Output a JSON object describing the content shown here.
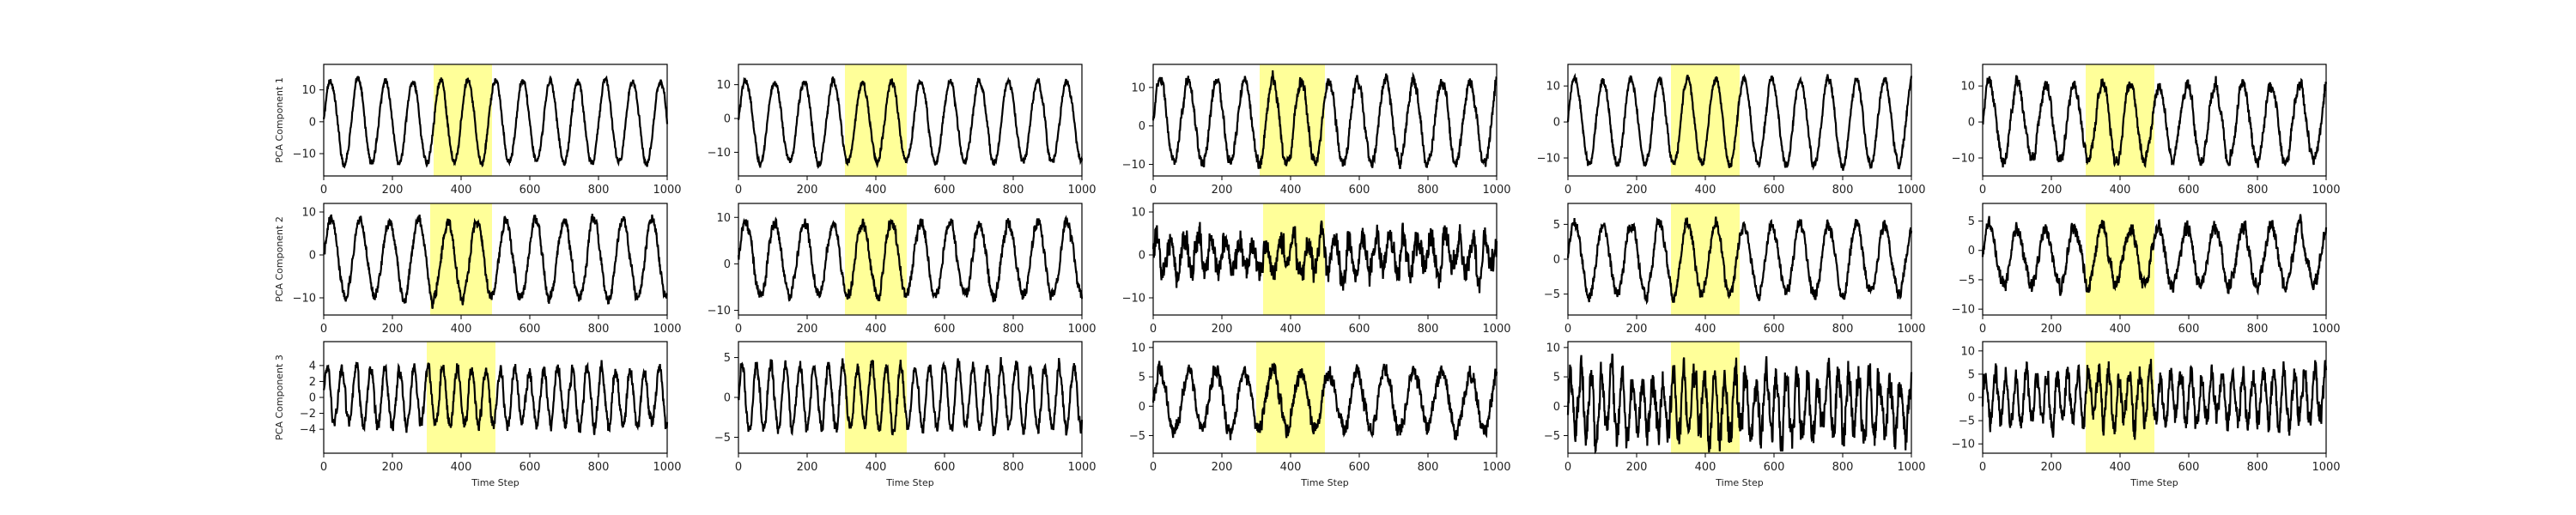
{
  "figure": {
    "row_labels": [
      "PCA Component 1",
      "PCA Component 2",
      "PCA Component 3"
    ],
    "xlabel": "Time Step",
    "highlight_color": "#ffff99",
    "line_color": "#000000"
  },
  "chart_data": [
    {
      "type": "line",
      "row": 0,
      "col": 0,
      "xlim": [
        0,
        1000
      ],
      "ylim": [
        -17,
        18
      ],
      "xticks": [
        0,
        200,
        400,
        600,
        800,
        1000
      ],
      "yticks": [
        -10,
        0,
        10
      ],
      "highlight": [
        320,
        490
      ],
      "series": [
        {
          "x": [
            0,
            1000
          ],
          "pattern": {
            "amplitude": 13,
            "period": 80,
            "noise": 1.5,
            "offset": 0
          }
        }
      ]
    },
    {
      "type": "line",
      "row": 0,
      "col": 1,
      "xlim": [
        0,
        1000
      ],
      "ylim": [
        -17,
        16
      ],
      "xticks": [
        0,
        200,
        400,
        600,
        800,
        1000
      ],
      "yticks": [
        -10,
        0,
        10
      ],
      "highlight": [
        310,
        490
      ],
      "series": [
        {
          "x": [
            0,
            1000
          ],
          "pattern": {
            "amplitude": 12,
            "period": 85,
            "noise": 1.5,
            "offset": -1
          }
        }
      ]
    },
    {
      "type": "line",
      "row": 0,
      "col": 2,
      "xlim": [
        0,
        1000
      ],
      "ylim": [
        -13,
        16
      ],
      "xticks": [
        0,
        200,
        400,
        600,
        800,
        1000
      ],
      "yticks": [
        -10,
        0,
        10
      ],
      "highlight": [
        310,
        500
      ],
      "series": [
        {
          "x": [
            0,
            1000
          ],
          "pattern": {
            "amplitude": 11,
            "period": 82,
            "noise": 2.2,
            "offset": 1
          }
        }
      ]
    },
    {
      "type": "line",
      "row": 0,
      "col": 3,
      "xlim": [
        0,
        1000
      ],
      "ylim": [
        -15,
        16
      ],
      "xticks": [
        0,
        200,
        400,
        600,
        800,
        1000
      ],
      "yticks": [
        -10,
        0,
        10
      ],
      "highlight": [
        300,
        500
      ],
      "series": [
        {
          "x": [
            0,
            1000
          ],
          "pattern": {
            "amplitude": 12,
            "period": 82,
            "noise": 1.5,
            "offset": 0
          }
        }
      ]
    },
    {
      "type": "line",
      "row": 0,
      "col": 4,
      "xlim": [
        0,
        1000
      ],
      "ylim": [
        -15,
        16
      ],
      "xticks": [
        0,
        200,
        400,
        600,
        800,
        1000
      ],
      "yticks": [
        -10,
        0,
        10
      ],
      "highlight": [
        300,
        500
      ],
      "series": [
        {
          "x": [
            0,
            1000
          ],
          "pattern": {
            "amplitude": 11,
            "period": 82,
            "noise": 2.5,
            "offset": 0
          }
        }
      ]
    },
    {
      "type": "line",
      "row": 1,
      "col": 0,
      "xlim": [
        0,
        1000
      ],
      "ylim": [
        -14,
        12
      ],
      "xticks": [
        0,
        200,
        400,
        600,
        800,
        1000
      ],
      "yticks": [
        -10,
        0,
        10
      ],
      "highlight": [
        310,
        490
      ],
      "series": [
        {
          "x": [
            0,
            1000
          ],
          "pattern": {
            "amplitude": 9,
            "period": 85,
            "noise": 1.8,
            "offset": -1
          }
        }
      ]
    },
    {
      "type": "line",
      "row": 1,
      "col": 1,
      "xlim": [
        0,
        1000
      ],
      "ylim": [
        -11,
        13
      ],
      "xticks": [
        0,
        200,
        400,
        600,
        800,
        1000
      ],
      "yticks": [
        -10,
        0,
        10
      ],
      "highlight": [
        310,
        490
      ],
      "series": [
        {
          "x": [
            0,
            1000
          ],
          "pattern": {
            "amplitude": 8,
            "period": 85,
            "noise": 1.8,
            "offset": 1
          }
        }
      ]
    },
    {
      "type": "line",
      "row": 1,
      "col": 2,
      "xlim": [
        0,
        1000
      ],
      "ylim": [
        -14,
        12
      ],
      "xticks": [
        0,
        200,
        400,
        600,
        800,
        1000
      ],
      "yticks": [
        -10,
        0,
        10
      ],
      "highlight": [
        320,
        500
      ],
      "series": [
        {
          "x": [
            0,
            1000
          ],
          "pattern": {
            "amplitude": 4,
            "period": 40,
            "noise": 4.5,
            "offset": 0
          }
        }
      ]
    },
    {
      "type": "line",
      "row": 1,
      "col": 3,
      "xlim": [
        0,
        1000
      ],
      "ylim": [
        -8,
        8
      ],
      "xticks": [
        0,
        200,
        400,
        600,
        800,
        1000
      ],
      "yticks": [
        -5,
        0,
        5
      ],
      "highlight": [
        300,
        500
      ],
      "series": [
        {
          "x": [
            0,
            1000
          ],
          "pattern": {
            "amplitude": 5,
            "period": 82,
            "noise": 1.2,
            "offset": 0
          }
        }
      ]
    },
    {
      "type": "line",
      "row": 1,
      "col": 4,
      "xlim": [
        0,
        1000
      ],
      "ylim": [
        -11,
        8
      ],
      "xticks": [
        0,
        200,
        400,
        600,
        800,
        1000
      ],
      "yticks": [
        -10,
        -5,
        0,
        5
      ],
      "highlight": [
        300,
        500
      ],
      "series": [
        {
          "x": [
            0,
            1000
          ],
          "pattern": {
            "amplitude": 5,
            "period": 82,
            "noise": 1.8,
            "offset": -1
          }
        }
      ]
    },
    {
      "type": "line",
      "row": 2,
      "col": 0,
      "xlim": [
        0,
        1000
      ],
      "ylim": [
        -7,
        7
      ],
      "xticks": [
        0,
        200,
        400,
        600,
        800,
        1000
      ],
      "yticks": [
        -4,
        -2,
        0,
        2,
        4
      ],
      "highlight": [
        300,
        500
      ],
      "series": [
        {
          "x": [
            0,
            1000
          ],
          "pattern": {
            "amplitude": 3.5,
            "period": 42,
            "noise": 1.2,
            "offset": 0
          }
        }
      ]
    },
    {
      "type": "line",
      "row": 2,
      "col": 1,
      "xlim": [
        0,
        1000
      ],
      "ylim": [
        -7,
        7
      ],
      "xticks": [
        0,
        200,
        400,
        600,
        800,
        1000
      ],
      "yticks": [
        -5,
        0,
        5
      ],
      "highlight": [
        310,
        490
      ],
      "series": [
        {
          "x": [
            0,
            1000
          ],
          "pattern": {
            "amplitude": 4,
            "period": 42,
            "noise": 1.2,
            "offset": 0
          }
        }
      ]
    },
    {
      "type": "line",
      "row": 2,
      "col": 2,
      "xlim": [
        0,
        1000
      ],
      "ylim": [
        -8,
        11
      ],
      "xticks": [
        0,
        200,
        400,
        600,
        800,
        1000
      ],
      "yticks": [
        -5,
        0,
        5,
        10
      ],
      "highlight": [
        300,
        500
      ],
      "series": [
        {
          "x": [
            0,
            1000
          ],
          "pattern": {
            "amplitude": 5,
            "period": 82,
            "noise": 2,
            "offset": 1
          }
        }
      ]
    },
    {
      "type": "line",
      "row": 2,
      "col": 3,
      "xlim": [
        0,
        1000
      ],
      "ylim": [
        -8,
        11
      ],
      "xticks": [
        0,
        200,
        400,
        600,
        800,
        1000
      ],
      "yticks": [
        -5,
        0,
        5,
        10
      ],
      "highlight": [
        300,
        500
      ],
      "series": [
        {
          "x": [
            0,
            1000
          ],
          "pattern": {
            "amplitude": 5,
            "period": 30,
            "noise": 4,
            "offset": 0
          }
        }
      ]
    },
    {
      "type": "line",
      "row": 2,
      "col": 4,
      "xlim": [
        0,
        1000
      ],
      "ylim": [
        -12,
        12
      ],
      "xticks": [
        0,
        200,
        400,
        600,
        800,
        1000
      ],
      "yticks": [
        -10,
        -5,
        0,
        5,
        10
      ],
      "highlight": [
        300,
        500
      ],
      "series": [
        {
          "x": [
            0,
            1000
          ],
          "pattern": {
            "amplitude": 5,
            "period": 30,
            "noise": 3.5,
            "offset": 0
          }
        }
      ]
    }
  ]
}
